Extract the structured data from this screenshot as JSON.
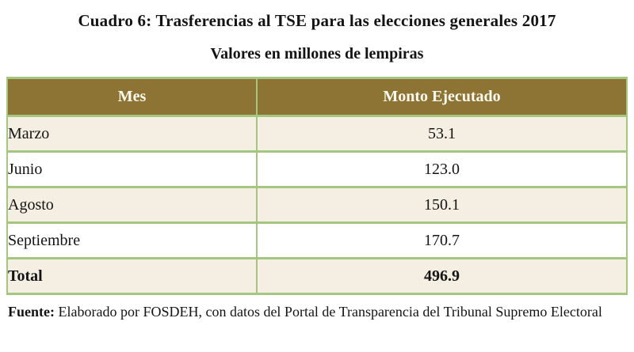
{
  "page": {
    "title": "Cuadro 6: Trasferencias al TSE para las elecciones generales 2017",
    "subtitle": "Valores en millones de lempiras"
  },
  "table": {
    "columns": [
      "Mes",
      "Monto Ejecutado"
    ],
    "rows": [
      {
        "mes": "Marzo",
        "monto": "53.1"
      },
      {
        "mes": "Junio",
        "monto": "123.0"
      },
      {
        "mes": "Agosto",
        "monto": "150.1"
      },
      {
        "mes": "Septiembre",
        "monto": "170.7"
      }
    ],
    "total": {
      "mes": "Total",
      "monto": "496.9"
    }
  },
  "source": {
    "label": "Fuente:",
    "text": " Elaborado por FOSDEH, con datos del Portal de Transparencia del Tribunal Supremo Electoral"
  },
  "colors": {
    "header_bg": "#8e7434",
    "header_text": "#fbfaf0",
    "row_alt_bg": "#f4efe2",
    "row_bg": "#ffffff",
    "border": "#a5c67e",
    "text": "#141414",
    "page_bg": "#ffffff"
  }
}
